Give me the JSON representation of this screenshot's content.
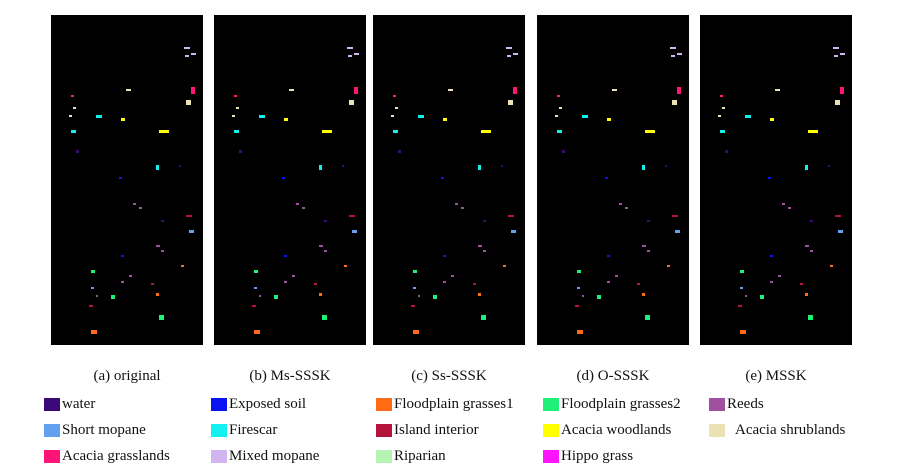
{
  "panels": [
    {
      "caption": "(a) original"
    },
    {
      "caption": "(b) Ms-SSSK"
    },
    {
      "caption": "(c) Ss-SSSK"
    },
    {
      "caption": "(d) O-SSSK"
    },
    {
      "caption": "(e) MSSK"
    }
  ],
  "legend": [
    {
      "label": "water",
      "color": "#3c0a78"
    },
    {
      "label": "Exposed soil",
      "color": "#0a14f0"
    },
    {
      "label": "Floodplain grasses1",
      "color": "#ff6a14"
    },
    {
      "label": "Floodplain grasses2",
      "color": "#1ef078"
    },
    {
      "label": "Reeds",
      "color": "#a050a0"
    },
    {
      "label": "Short mopane",
      "color": "#64a0f0"
    },
    {
      "label": "Firescar",
      "color": "#14f0f0"
    },
    {
      "label": "Island interior",
      "color": "#b4143c"
    },
    {
      "label": "Acacia woodlands",
      "color": "#ffff00"
    },
    {
      "label": "Acacia shrublands",
      "color": "#ebe1b4"
    },
    {
      "label": "Acacia grasslands",
      "color": "#ff1478"
    },
    {
      "label": "Mixed mopane",
      "color": "#d2b4f0"
    },
    {
      "label": "Riparian",
      "color": "#b4f5b4"
    },
    {
      "label": "Hippo grass",
      "color": "#ff14ff"
    }
  ]
}
